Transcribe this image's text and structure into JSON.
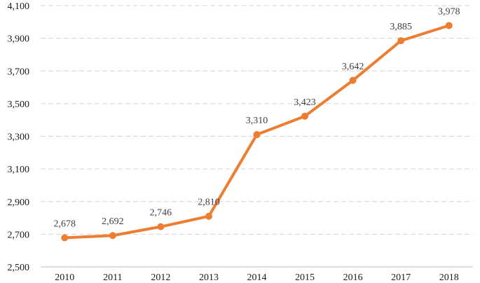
{
  "chart_data": {
    "type": "line",
    "title": "",
    "xlabel": "",
    "ylabel": "",
    "x": [
      "2010",
      "2011",
      "2012",
      "2013",
      "2014",
      "2015",
      "2016",
      "2017",
      "2018"
    ],
    "series": [
      {
        "values": [
          2678,
          2692,
          2746,
          2810,
          3310,
          3423,
          3642,
          3885,
          3978
        ]
      }
    ],
    "data_labels": [
      "2,678",
      "2,692",
      "2,746",
      "2,810",
      "3,310",
      "3,423",
      "3,642",
      "3,885",
      "3,978"
    ],
    "ylim": [
      2500,
      4100
    ],
    "yticks": [
      2500,
      2700,
      2900,
      3100,
      3300,
      3500,
      3700,
      3900,
      4100
    ],
    "ytick_labels": [
      "2,500",
      "2,700",
      "2,900",
      "3,100",
      "3,300",
      "3,500",
      "3,700",
      "3,900",
      "4,100"
    ],
    "grid": true,
    "legend": "none",
    "line_color": "#ED7D31"
  }
}
